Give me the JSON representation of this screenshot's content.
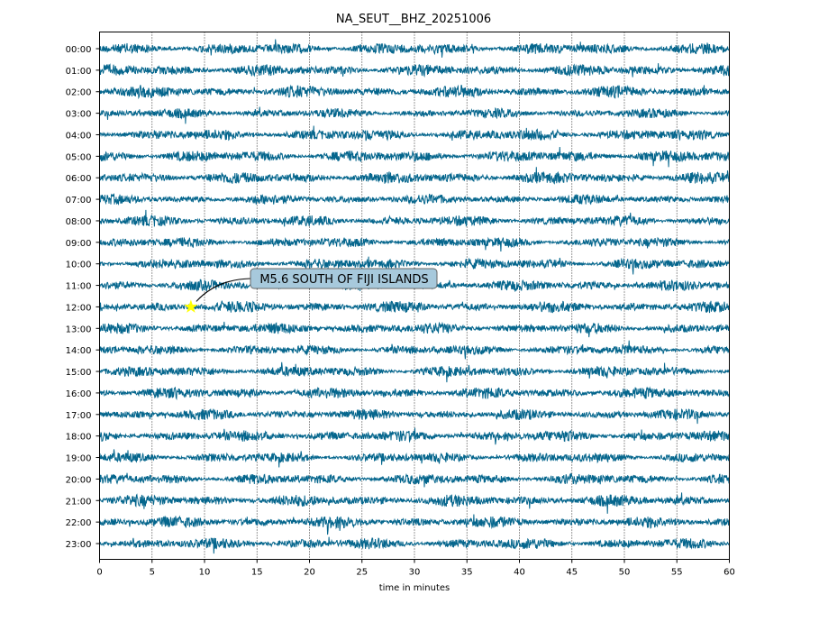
{
  "chart_data": {
    "type": "line",
    "subtype": "helicorder",
    "title": "NA_SEUT__BHZ_20251006",
    "xlabel": "time in minutes",
    "ylabel": "",
    "xlim": [
      0,
      60
    ],
    "xticks": [
      0,
      5,
      10,
      15,
      20,
      25,
      30,
      35,
      40,
      45,
      50,
      55,
      60
    ],
    "yticklabels": [
      "00:00",
      "01:00",
      "02:00",
      "03:00",
      "04:00",
      "05:00",
      "06:00",
      "07:00",
      "08:00",
      "09:00",
      "10:00",
      "11:00",
      "12:00",
      "13:00",
      "14:00",
      "15:00",
      "16:00",
      "17:00",
      "18:00",
      "19:00",
      "20:00",
      "21:00",
      "22:00",
      "23:00"
    ],
    "grid": "vertical dotted",
    "trace_color": "#05668d",
    "series": [
      {
        "name": "BHZ",
        "description_values": "continuous seismic noise trace, one line per hour"
      }
    ],
    "annotation": {
      "text": "M5.6 SOUTH OF FIJI ISLANDS",
      "hour_row": 12,
      "minute": 8.7,
      "marker": "star",
      "marker_color": "#ffff00"
    }
  }
}
